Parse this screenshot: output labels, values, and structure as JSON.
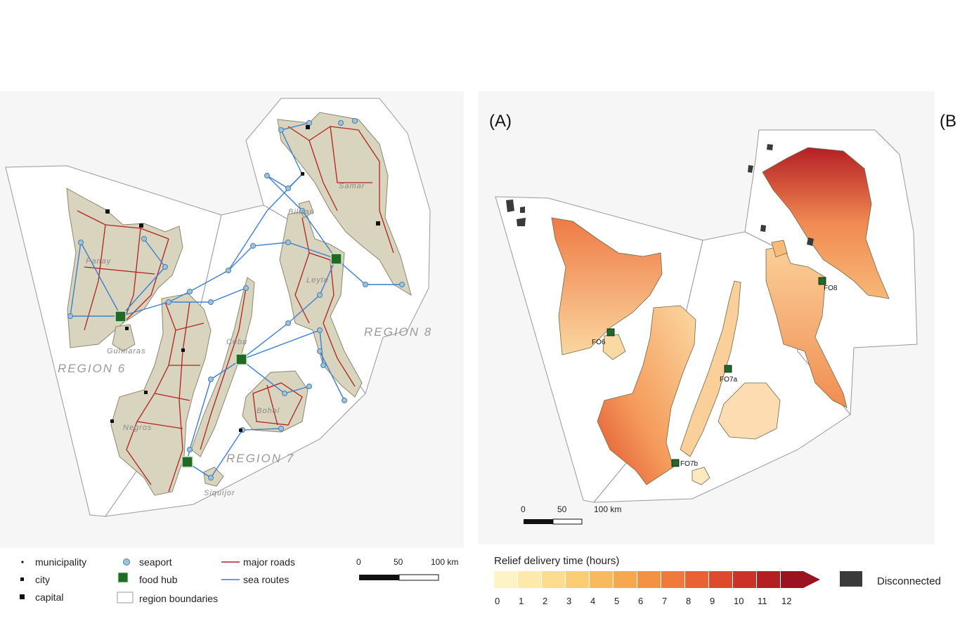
{
  "left_map": {
    "regions": [
      "REGION 6",
      "REGION 7",
      "REGION 8"
    ],
    "islands": [
      "Panay",
      "Guimaras",
      "Negros",
      "Cebu",
      "Bohol",
      "Siquijor",
      "Leyte",
      "Samar",
      "Biliran"
    ],
    "scale": {
      "ticks": [
        "0",
        "50",
        "100 km"
      ]
    },
    "legend": {
      "municipality": "municipality",
      "city": "city",
      "capital": "capital",
      "seaport": "seaport",
      "food_hub": "food hub",
      "region_boundaries": "region boundaries",
      "major_roads": "major roads",
      "sea_routes": "sea routes"
    }
  },
  "right_map": {
    "panel_label": "(A)",
    "panel_label_b": "(B",
    "hubs": [
      "FO6",
      "FO7a",
      "FO7b",
      "FO8"
    ],
    "scale": {
      "ticks": [
        "0",
        "50",
        "100 km"
      ]
    },
    "colorbar": {
      "title": "Relief delivery time (hours)",
      "ticks": [
        "0",
        "1",
        "2",
        "3",
        "4",
        "5",
        "6",
        "7",
        "8",
        "9",
        "10",
        "11",
        "12"
      ],
      "colors": [
        "#fdf3c4",
        "#fde9a9",
        "#fcdc8e",
        "#fbcd75",
        "#f9ba5e",
        "#f7a74e",
        "#f49244",
        "#f07a3b",
        "#ea6234",
        "#de4a2d",
        "#cc3328",
        "#b51f24",
        "#9b1220"
      ],
      "disconnected_label": "Disconnected",
      "disconnected_color": "#3a3a3a"
    }
  },
  "colors": {
    "land": "#d8d4bd",
    "road": "#b22222",
    "sea_route": "#3a7fd5",
    "seaport": "#9fc3dc",
    "food_hub": "#1f6b25"
  }
}
